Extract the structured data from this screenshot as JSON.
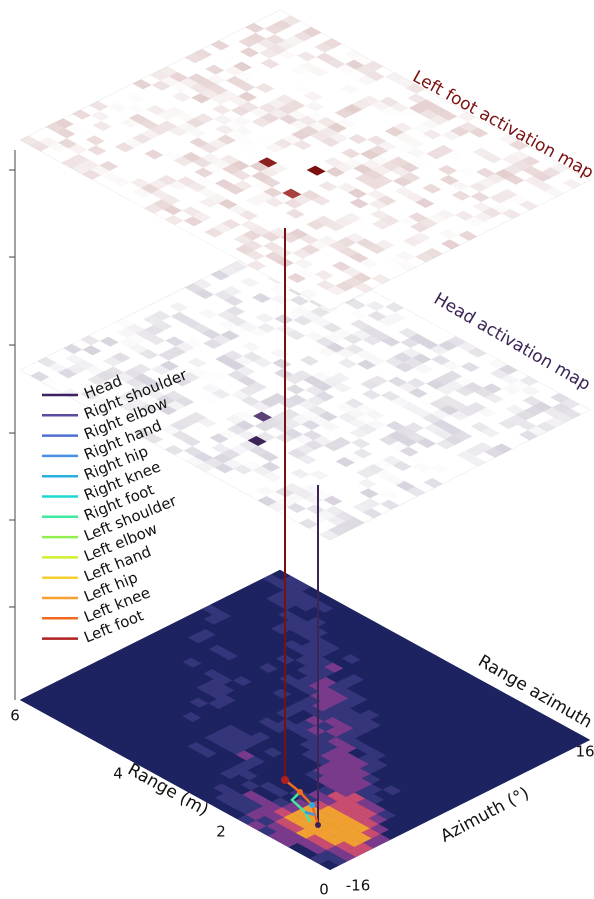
{
  "layers": [
    {
      "title": "Left foot activation map",
      "color": "#7a1010"
    },
    {
      "title": "Head activation map",
      "color": "#3b2456"
    }
  ],
  "bottom": {
    "title": "Range azimuth"
  },
  "axes": {
    "range": {
      "label": "Range (m)",
      "ticks": [
        0,
        2,
        4,
        6
      ]
    },
    "azimuth": {
      "label": "Azimuth (°)",
      "ticks": [
        -16,
        16
      ]
    }
  },
  "legend": [
    {
      "label": "Head",
      "color": "#3b1f5e"
    },
    {
      "label": "Right shoulder",
      "color": "#5b4aa0"
    },
    {
      "label": "Right elbow",
      "color": "#4f6fd0"
    },
    {
      "label": "Right hand",
      "color": "#4a8fe0"
    },
    {
      "label": "Right hip",
      "color": "#2ab0e0"
    },
    {
      "label": "Right knee",
      "color": "#1fd8d0"
    },
    {
      "label": "Right foot",
      "color": "#40e8a0"
    },
    {
      "label": "Left shoulder",
      "color": "#90f050"
    },
    {
      "label": "Left elbow",
      "color": "#d0f030"
    },
    {
      "label": "Left hand",
      "color": "#f8d030"
    },
    {
      "label": "Left hip",
      "color": "#f8a030"
    },
    {
      "label": "Left knee",
      "color": "#f06a20"
    },
    {
      "label": "Left foot",
      "color": "#b02020"
    }
  ]
}
